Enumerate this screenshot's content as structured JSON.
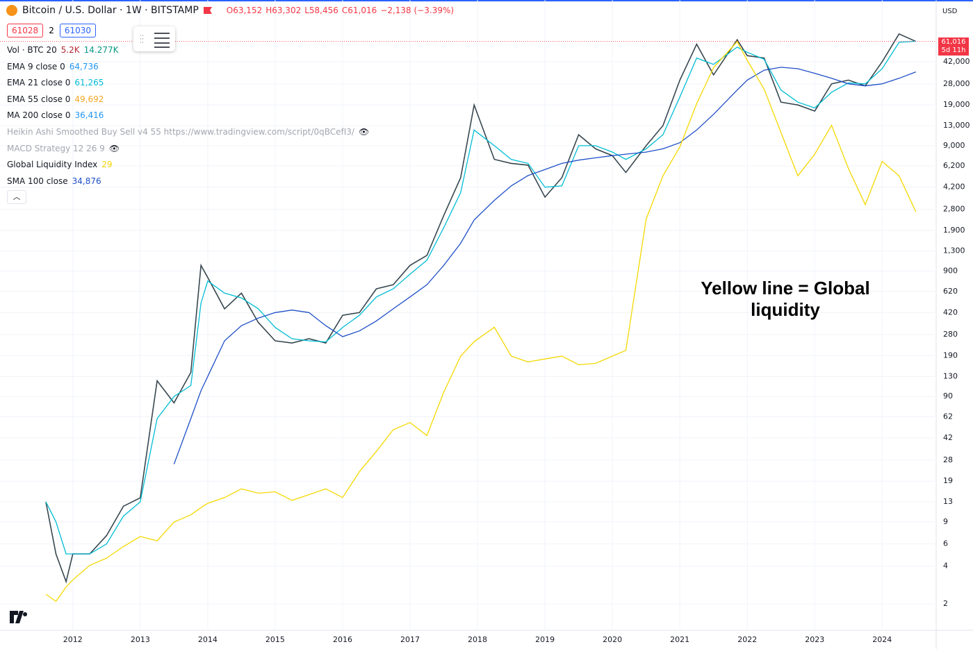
{
  "header": {
    "title": "Bitcoin / U.S. Dollar · 1W · BITSTAMP",
    "ohlc": [
      "O63,152",
      "H63,302",
      "L58,456",
      "C61,016",
      "−2,138 (−3.39%)"
    ],
    "buttons": [
      "61028",
      "2",
      "61030"
    ],
    "currency": "USD",
    "price_tag": "61,016",
    "countdown": "5d 11h"
  },
  "legend": [
    {
      "name": "Vol · BTC 20",
      "values": [
        "5.2K",
        "14.277K"
      ],
      "colors": [
        "#b22833",
        "#089981"
      ]
    },
    {
      "name": "EMA 9 close 0",
      "values": [
        "64,736"
      ],
      "colors": [
        "#2196f3"
      ]
    },
    {
      "name": "EMA 21 close 0",
      "values": [
        "61,265"
      ],
      "colors": [
        "#00bcd4"
      ]
    },
    {
      "name": "EMA 55 close 0",
      "values": [
        "49,692"
      ],
      "colors": [
        "#f5a623"
      ]
    },
    {
      "name": "MA 200 close 0",
      "values": [
        "36,416"
      ],
      "colors": [
        "#2196f3"
      ]
    },
    {
      "name": "Heikin Ashi Smoothed Buy Sell v4 55 https://www.tradingview.com/script/0qBCefI3/",
      "values": [],
      "colors": [],
      "hidden": true
    },
    {
      "name": "MACD Strategy 12 26 9",
      "values": [],
      "colors": [],
      "hidden": true
    },
    {
      "name": "Global Liquidity Index",
      "values": [
        "29"
      ],
      "colors": [
        "#f5d800"
      ]
    },
    {
      "name": "SMA 100 close",
      "values": [
        "34,876"
      ],
      "colors": [
        "#1e4fc7"
      ]
    }
  ],
  "annotation": [
    "Yellow line = Global",
    "liquidity"
  ],
  "chart_data": {
    "type": "line",
    "log_scale": true,
    "grid": true,
    "x": [
      2011.6,
      2011.75,
      2011.9,
      2012.0,
      2012.25,
      2012.5,
      2012.75,
      2013.0,
      2013.25,
      2013.5,
      2013.75,
      2013.9,
      2014.0,
      2014.25,
      2014.5,
      2014.75,
      2015.0,
      2015.25,
      2015.5,
      2015.75,
      2016.0,
      2016.25,
      2016.5,
      2016.75,
      2017.0,
      2017.25,
      2017.5,
      2017.75,
      2017.95,
      2018.25,
      2018.5,
      2018.75,
      2019.0,
      2019.25,
      2019.5,
      2019.75,
      2020.0,
      2020.2,
      2020.5,
      2020.75,
      2021.0,
      2021.25,
      2021.5,
      2021.85,
      2022.0,
      2022.25,
      2022.5,
      2022.75,
      2023.0,
      2023.25,
      2023.5,
      2023.75,
      2024.0,
      2024.25,
      2024.5
    ],
    "xlim": [
      2010.92,
      2024.78
    ],
    "xticks": [
      2012,
      2013,
      2014,
      2015,
      2016,
      2017,
      2018,
      2019,
      2020,
      2021,
      2022,
      2023,
      2024
    ],
    "ylim": [
      1.23,
      83600
    ],
    "yticks": [
      2,
      4,
      6,
      9,
      13,
      19,
      28,
      42,
      62,
      90,
      130,
      190,
      280,
      420,
      620,
      900,
      {
        "value": 1300,
        "label": "1,300"
      },
      {
        "value": 1900,
        "label": "1,900"
      },
      {
        "value": 2800,
        "label": "2,800"
      },
      {
        "value": 4200,
        "label": "4,200"
      },
      {
        "value": 6200,
        "label": "6,200"
      },
      {
        "value": 9000,
        "label": "9,000"
      },
      {
        "value": 13000,
        "label": "13,000"
      },
      {
        "value": 19000,
        "label": "19,000"
      },
      {
        "value": 28000,
        "label": "28,000"
      },
      {
        "value": 42000,
        "label": "42,000"
      }
    ],
    "y2lim": [
      0,
      42
    ],
    "series": [
      {
        "color": "#37474f",
        "values": [
          13,
          5,
          3,
          5,
          5,
          7,
          12,
          14,
          120,
          80,
          140,
          1000,
          800,
          450,
          600,
          350,
          250,
          240,
          260,
          240,
          400,
          420,
          650,
          700,
          1000,
          1200,
          2500,
          5000,
          19000,
          7000,
          6500,
          6300,
          3500,
          5000,
          11000,
          8500,
          7500,
          5500,
          9000,
          13000,
          30000,
          58000,
          33000,
          63000,
          47000,
          45000,
          20000,
          19000,
          17000,
          28000,
          30000,
          27000,
          42000,
          70000,
          61016
        ]
      },
      {
        "name": "EMA 21 close 0",
        "color": "#00bcd4",
        "values": [
          13,
          9,
          5,
          5,
          5,
          6,
          10,
          13,
          60,
          90,
          110,
          500,
          750,
          600,
          550,
          450,
          320,
          260,
          250,
          245,
          320,
          400,
          560,
          650,
          850,
          1100,
          2000,
          3800,
          12000,
          9000,
          7000,
          6500,
          4200,
          4300,
          9000,
          9000,
          8000,
          7000,
          8500,
          11000,
          22000,
          45000,
          40000,
          55000,
          50000,
          44000,
          25000,
          20000,
          18000,
          24000,
          28500,
          28000,
          37000,
          60000,
          61265
        ]
      },
      {
        "name": "SMA 100 close",
        "color": "#1e4fc7",
        "values": [
          null,
          null,
          null,
          null,
          null,
          null,
          null,
          null,
          null,
          26,
          60,
          100,
          130,
          250,
          330,
          380,
          420,
          440,
          420,
          330,
          270,
          300,
          360,
          450,
          560,
          700,
          1000,
          1500,
          2300,
          3300,
          4300,
          5200,
          5800,
          6500,
          6900,
          7200,
          7500,
          7700,
          8000,
          8500,
          9500,
          12000,
          16000,
          25000,
          30000,
          36000,
          38000,
          37000,
          34000,
          31000,
          28000,
          27000,
          28000,
          31000,
          34876
        ]
      },
      {
        "name": "Global Liquidity Index",
        "color": "#f5d800",
        "axis": "y2",
        "values": [
          2.5,
          2.0,
          3.0,
          3.5,
          4.5,
          5.0,
          5.8,
          6.5,
          6.2,
          7.5,
          8.0,
          8.5,
          8.8,
          9.2,
          9.8,
          9.5,
          9.6,
          9.0,
          9.4,
          9.8,
          9.2,
          11.0,
          12.4,
          13.9,
          14.4,
          13.5,
          16.5,
          19.0,
          20.0,
          21.0,
          19.0,
          18.6,
          18.8,
          19.0,
          18.4,
          18.5,
          19.0,
          19.4,
          28.5,
          31.5,
          33.5,
          36.5,
          39.0,
          40.8,
          39.5,
          37.5,
          34.5,
          31.5,
          33.0,
          35.0,
          32.0,
          29.5,
          32.5,
          31.5,
          29
        ]
      }
    ]
  }
}
